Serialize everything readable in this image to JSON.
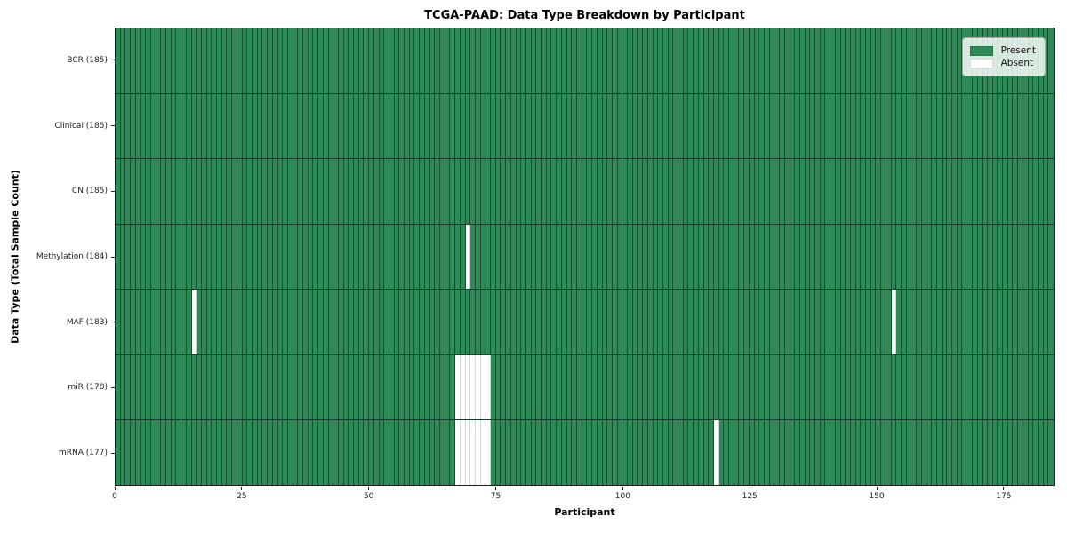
{
  "chart_data": {
    "type": "heatmap",
    "title": "TCGA-PAAD: Data Type Breakdown by Participant",
    "xlabel": "Participant",
    "ylabel": "Data Type (Total Sample Count)",
    "n_participants": 185,
    "xlim": [
      0,
      185
    ],
    "x_ticks": [
      0,
      25,
      50,
      75,
      100,
      125,
      150,
      175
    ],
    "grid": "cell-edges",
    "legend_position": "upper right",
    "legend": [
      {
        "label": "Present",
        "color": "#2e8b57"
      },
      {
        "label": "Absent",
        "color": "#ffffff"
      }
    ],
    "rows": [
      {
        "label": "BCR (185)",
        "total_samples": 185,
        "absent_participants": []
      },
      {
        "label": "Clinical (185)",
        "total_samples": 185,
        "absent_participants": []
      },
      {
        "label": "CN (185)",
        "total_samples": 185,
        "absent_participants": []
      },
      {
        "label": "Methylation (184)",
        "total_samples": 184,
        "absent_participants": [
          69
        ]
      },
      {
        "label": "MAF (183)",
        "total_samples": 183,
        "absent_participants": [
          15,
          153
        ]
      },
      {
        "label": "miR (178)",
        "total_samples": 178,
        "absent_participants": [
          67,
          68,
          69,
          70,
          71,
          72,
          73
        ]
      },
      {
        "label": "mRNA (177)",
        "total_samples": 177,
        "absent_participants": [
          67,
          68,
          69,
          70,
          71,
          72,
          73,
          118
        ]
      }
    ]
  },
  "colors": {
    "present": "#2e8b57",
    "absent": "#ffffff",
    "plot_frame": "#1c1c1c",
    "legend_background": "#e9efe9"
  }
}
